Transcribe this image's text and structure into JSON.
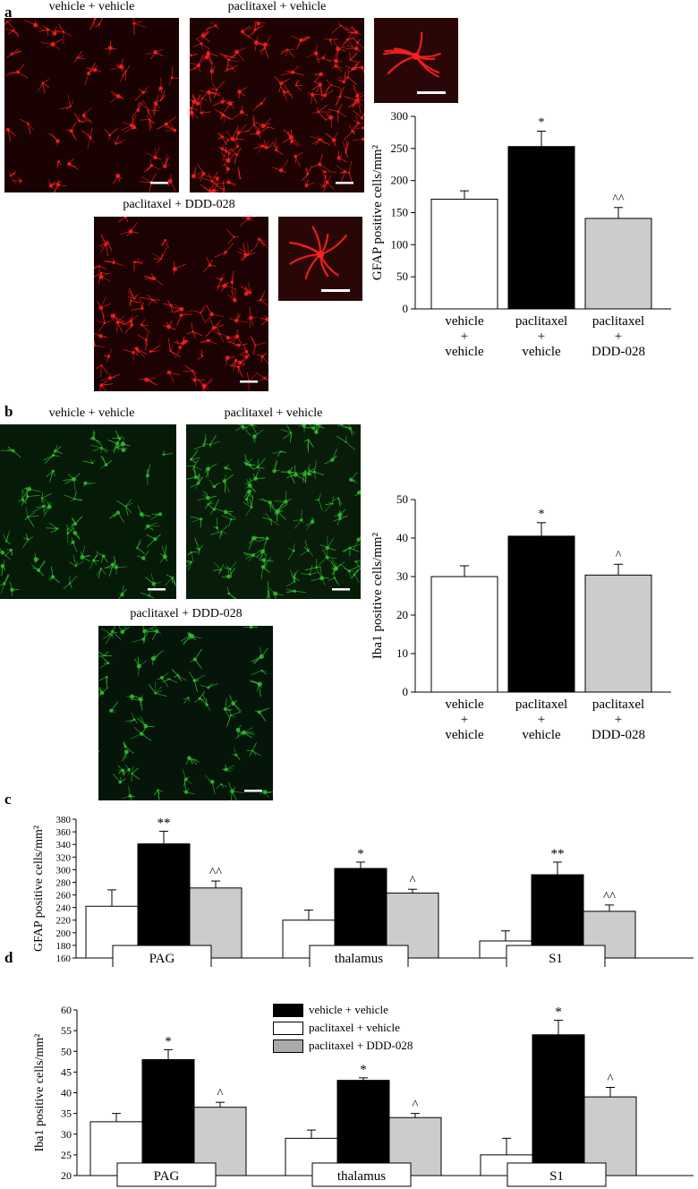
{
  "panels": {
    "a": {
      "letter": "a",
      "image_labels": [
        "vehicle + vehicle",
        "paclitaxel + vehicle",
        "paclitaxel + DDD-028"
      ]
    },
    "b": {
      "letter": "b",
      "image_labels": [
        "vehicle + vehicle",
        "paclitaxel + vehicle",
        "paclitaxel + DDD-028"
      ]
    },
    "c": {
      "letter": "c"
    },
    "d": {
      "letter": "d"
    }
  },
  "colors": {
    "astro_red": "#ff2020",
    "micro_green": "#2fbf2f",
    "bar_white": "#ffffff",
    "bar_black": "#000000",
    "bar_gray": "#cccccc"
  },
  "chart_data": [
    {
      "id": "a",
      "type": "bar",
      "ylabel": "GFAP positive cells/mm²",
      "ylim": [
        0,
        300
      ],
      "yticks": [
        0,
        50,
        100,
        150,
        200,
        250,
        300
      ],
      "categories": [
        [
          "vehicle",
          "+",
          "vehicle"
        ],
        [
          "paclitaxel",
          "+",
          "vehicle"
        ],
        [
          "paclitaxel",
          "+",
          "DDD-028"
        ]
      ],
      "values": [
        171,
        253,
        141
      ],
      "errors": [
        13,
        24,
        17
      ],
      "annotations": [
        "",
        "*",
        "^^"
      ],
      "colors": [
        "#ffffff",
        "#000000",
        "#cccccc"
      ]
    },
    {
      "id": "b",
      "type": "bar",
      "ylabel": "Iba1 positive cells/mm²",
      "ylim": [
        0,
        50
      ],
      "yticks": [
        0,
        10,
        20,
        30,
        40,
        50
      ],
      "categories": [
        [
          "vehicle",
          "+",
          "vehicle"
        ],
        [
          "paclitaxel",
          "+",
          "vehicle"
        ],
        [
          "paclitaxel",
          "+",
          "DDD-028"
        ]
      ],
      "values": [
        30,
        40.5,
        30.4
      ],
      "errors": [
        2.8,
        3.5,
        2.8
      ],
      "annotations": [
        "",
        "*",
        "^"
      ],
      "colors": [
        "#ffffff",
        "#000000",
        "#cccccc"
      ]
    },
    {
      "id": "c",
      "type": "bar",
      "ylabel": "GFAP positive cells/mm²",
      "ylim": [
        160,
        380
      ],
      "yticks": [
        160,
        180,
        200,
        220,
        240,
        260,
        280,
        300,
        320,
        340,
        360,
        380
      ],
      "categories": [
        "PAG",
        "thalamus",
        "S1"
      ],
      "series": [
        {
          "values": [
            242,
            220,
            187
          ],
          "errors": [
            26,
            16,
            16
          ],
          "annotations": [
            "",
            "",
            ""
          ],
          "color": "#ffffff"
        },
        {
          "values": [
            341,
            302,
            292
          ],
          "errors": [
            20,
            10,
            20
          ],
          "annotations": [
            "**",
            "*",
            "**"
          ],
          "color": "#000000"
        },
        {
          "values": [
            271,
            263,
            234
          ],
          "errors": [
            11,
            6,
            10
          ],
          "annotations": [
            "^^",
            "^",
            "^^"
          ],
          "color": "#cccccc"
        }
      ]
    },
    {
      "id": "d",
      "type": "bar",
      "ylabel": "Iba1 positive cells/mm²",
      "ylim": [
        20,
        60
      ],
      "yticks": [
        20,
        25,
        30,
        35,
        40,
        45,
        50,
        55,
        60
      ],
      "categories": [
        "PAG",
        "thalamus",
        "S1"
      ],
      "legend": [
        "vehicle + vehicle",
        "paclitaxel + vehicle",
        "paclitaxel + DDD-028"
      ],
      "series": [
        {
          "values": [
            33,
            29,
            25
          ],
          "errors": [
            2,
            2,
            4
          ],
          "annotations": [
            "",
            "",
            ""
          ],
          "color": "#ffffff"
        },
        {
          "values": [
            48,
            43,
            54
          ],
          "errors": [
            2.4,
            0.6,
            3.5
          ],
          "annotations": [
            "*",
            "*",
            "*"
          ],
          "color": "#000000"
        },
        {
          "values": [
            36.5,
            34,
            39
          ],
          "errors": [
            1.2,
            1,
            2.3
          ],
          "annotations": [
            "^",
            "^",
            "^"
          ],
          "color": "#cccccc"
        }
      ]
    }
  ]
}
